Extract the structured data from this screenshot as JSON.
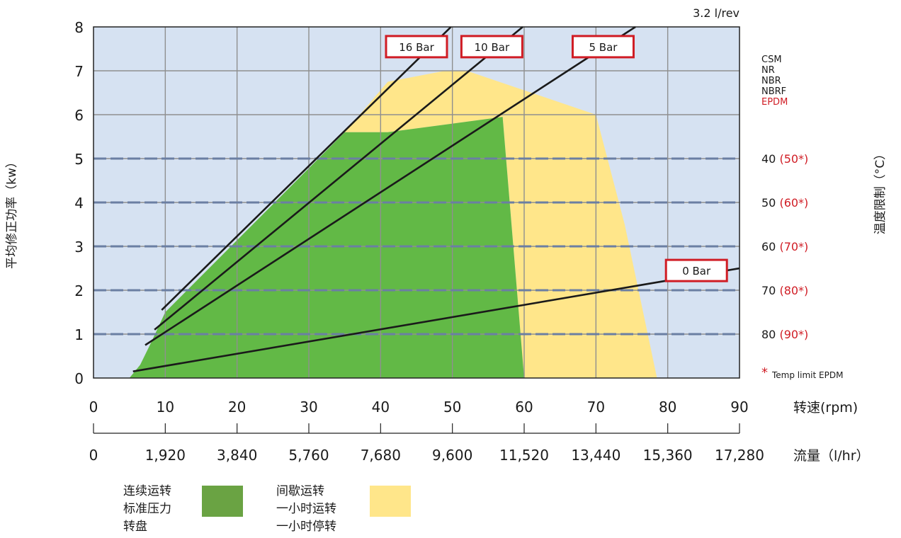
{
  "chart_data": {
    "type": "area",
    "top_label": "3.2 l/rev",
    "ylabel": "平均修正功率（kw）",
    "y2label": "温度限制（°C）",
    "x_unit_label": "转速(rpm)",
    "flow_unit_label": "流量（l/hr）",
    "xlim": [
      0,
      90
    ],
    "ylim": [
      0,
      8
    ],
    "x_ticks": [
      "0",
      "10",
      "20",
      "30",
      "40",
      "50",
      "60",
      "70",
      "80",
      "90"
    ],
    "y_ticks": [
      "0",
      "1",
      "2",
      "3",
      "4",
      "5",
      "6",
      "7",
      "8"
    ],
    "flow_ticks": [
      "0",
      "1,920",
      "3,840",
      "5,760",
      "7,680",
      "9,600",
      "11,520",
      "13,440",
      "15,360",
      "17,280"
    ],
    "grid": true,
    "continuous_region": {
      "color": "#62b946",
      "points": [
        [
          5,
          0
        ],
        [
          6.5,
          0.3
        ],
        [
          8,
          0.8
        ],
        [
          10,
          1.5
        ],
        [
          35,
          5.6
        ],
        [
          41,
          5.6
        ],
        [
          57,
          5.95
        ],
        [
          60,
          0
        ]
      ]
    },
    "intermittent_region": {
      "color": "#ffe68a",
      "points": [
        [
          35,
          5.6
        ],
        [
          41,
          6.75
        ],
        [
          49,
          7.0
        ],
        [
          52,
          7.0
        ],
        [
          70,
          6.0
        ],
        [
          74,
          3.5
        ],
        [
          78.5,
          0
        ],
        [
          60,
          0
        ],
        [
          57,
          5.95
        ],
        [
          41,
          5.6
        ]
      ]
    },
    "pressure_lines": [
      {
        "label": "16 Bar",
        "x": [
          9.5,
          49.8
        ],
        "y": [
          1.55,
          8.0
        ],
        "label_x": 45,
        "label_y": 7.55
      },
      {
        "label": "10 Bar",
        "x": [
          8.5,
          59.8
        ],
        "y": [
          1.1,
          8.0
        ],
        "label_x": 55.5,
        "label_y": 7.55
      },
      {
        "label": "5 Bar",
        "x": [
          7.2,
          75.5
        ],
        "y": [
          0.75,
          8.0
        ],
        "label_x": 71,
        "label_y": 7.55
      },
      {
        "label": "0 Bar",
        "x": [
          5.5,
          90
        ],
        "y": [
          0.15,
          2.5
        ],
        "label_x": 84,
        "label_y": 2.45
      }
    ],
    "dashed_levels": [
      {
        "y": 5,
        "temp": "40",
        "temp_epdm": "(50*)"
      },
      {
        "y": 4,
        "temp": "50",
        "temp_epdm": "(60*)"
      },
      {
        "y": 3,
        "temp": "60",
        "temp_epdm": "(70*)"
      },
      {
        "y": 2,
        "temp": "70",
        "temp_epdm": "(80*)"
      },
      {
        "y": 1,
        "temp": "80",
        "temp_epdm": "(90*)"
      }
    ],
    "materials": [
      "CSM",
      "NR",
      "NBR",
      "NBRF"
    ],
    "material_highlight": "EPDM",
    "footnote_star": "*",
    "footnote_text": "Temp limit EPDM",
    "colors": {
      "background": "#d6e2f2",
      "grid": "#8f8f8f",
      "dashed": "#6b7fa3",
      "line": "#1a1a1a",
      "label_border": "#d01c24",
      "highlight": "#d01c24"
    }
  },
  "legend": {
    "continuous": [
      "连续运转",
      "标准压力",
      "转盘"
    ],
    "continuous_color": "#6aa343",
    "intermittent": [
      "间歇运转",
      "一小时运转",
      "一小时停转"
    ],
    "intermittent_color": "#ffe68a"
  }
}
